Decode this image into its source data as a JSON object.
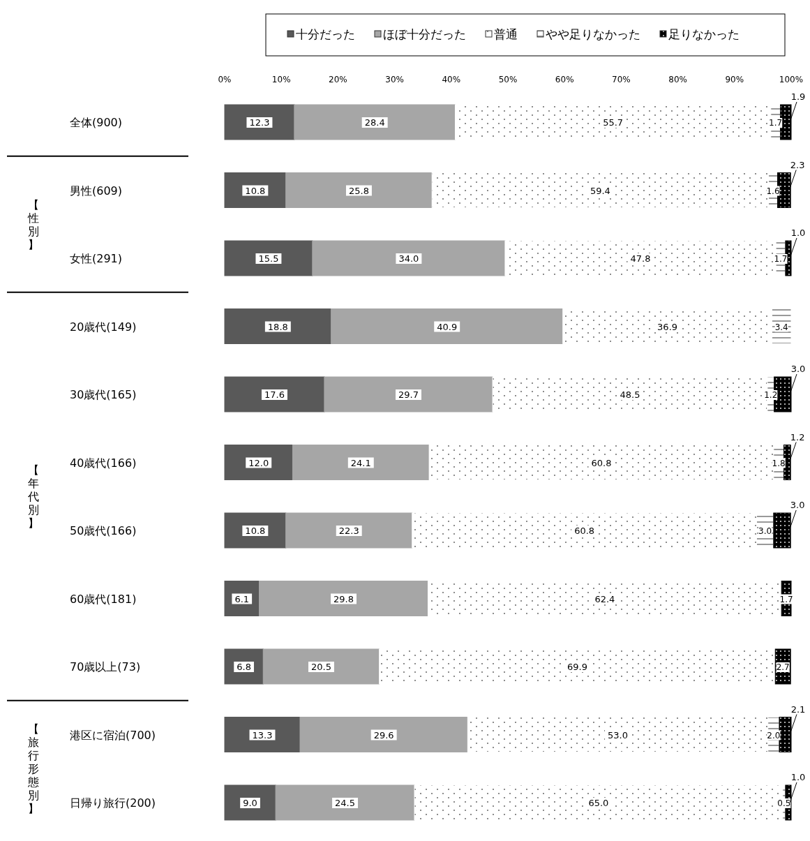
{
  "chart_data": {
    "type": "bar",
    "orientation": "horizontal",
    "stacked": true,
    "legend": "top",
    "grid": false,
    "categories": [
      "全体(900)",
      "男性(609)",
      "女性(291)",
      "20歳代(149)",
      "30歳代(165)",
      "40歳代(166)",
      "50歳代(166)",
      "60歳代(181)",
      "70歳以上(73)",
      "港区に宿泊(700)",
      "日帰り旅行(200)"
    ],
    "xlim": [
      0,
      100
    ],
    "xticks": [
      {
        "value": 0,
        "label": "0%"
      },
      {
        "value": 10,
        "label": "10%"
      },
      {
        "value": 20,
        "label": "20%"
      },
      {
        "value": 30,
        "label": "30%"
      },
      {
        "value": 40,
        "label": "40%"
      },
      {
        "value": 50,
        "label": "50%"
      },
      {
        "value": 60,
        "label": "60%"
      },
      {
        "value": 70,
        "label": "70%"
      },
      {
        "value": 80,
        "label": "80%"
      },
      {
        "value": 90,
        "label": "90%"
      },
      {
        "value": 100,
        "label": "100%"
      }
    ],
    "series": [
      {
        "name": "十分だった",
        "color": "#595959",
        "values": [
          12.3,
          10.8,
          15.5,
          18.8,
          17.6,
          12.0,
          10.8,
          6.1,
          6.8,
          13.3,
          9.0
        ],
        "value_labels": [
          "12.3",
          "10.8",
          "15.5",
          "18.8",
          "17.6",
          "12.0",
          "10.8",
          "6.1",
          "6.8",
          "13.3",
          "9.0"
        ]
      },
      {
        "name": "ほぼ十分だった",
        "color": "#a6a6a6",
        "values": [
          28.4,
          25.8,
          34.0,
          40.9,
          29.7,
          24.1,
          22.3,
          29.8,
          20.5,
          29.6,
          24.5
        ],
        "value_labels": [
          "28.4",
          "25.8",
          "34.0",
          "40.9",
          "29.7",
          "24.1",
          "22.3",
          "29.8",
          "20.5",
          "29.6",
          "24.5"
        ]
      },
      {
        "name": "普通",
        "color": "#ffffff",
        "values": [
          55.7,
          59.4,
          47.8,
          36.9,
          48.5,
          60.8,
          60.8,
          62.4,
          69.9,
          53.0,
          65.0
        ],
        "value_labels": [
          "55.7",
          "59.4",
          "47.8",
          "36.9",
          "48.5",
          "60.8",
          "60.8",
          "62.4",
          "69.9",
          "53.0",
          "65.0"
        ]
      },
      {
        "name": "やや足りなかった",
        "color": "#ffffff",
        "values": [
          1.7,
          1.6,
          1.7,
          3.4,
          1.2,
          1.8,
          3.0,
          null,
          null,
          2.0,
          0.5
        ],
        "value_labels": [
          "1.7",
          "1.6",
          "1.7",
          "3.4",
          "1.2",
          "1.8",
          "3.0",
          null,
          null,
          "2.0",
          "0.5"
        ]
      },
      {
        "name": "足りなかった",
        "color": "#000000",
        "values": [
          1.9,
          2.3,
          1.0,
          null,
          3.0,
          1.2,
          3.0,
          1.7,
          2.7,
          2.1,
          1.0
        ],
        "value_labels": [
          "1.9",
          "2.3",
          "1.0",
          null,
          "3.0",
          "1.2",
          "3.0",
          "1.7",
          "2.7",
          "2.1",
          "1.0"
        ]
      }
    ],
    "annotations": [
      "【性別】",
      "【年代別】",
      "【旅行形態別】"
    ]
  }
}
